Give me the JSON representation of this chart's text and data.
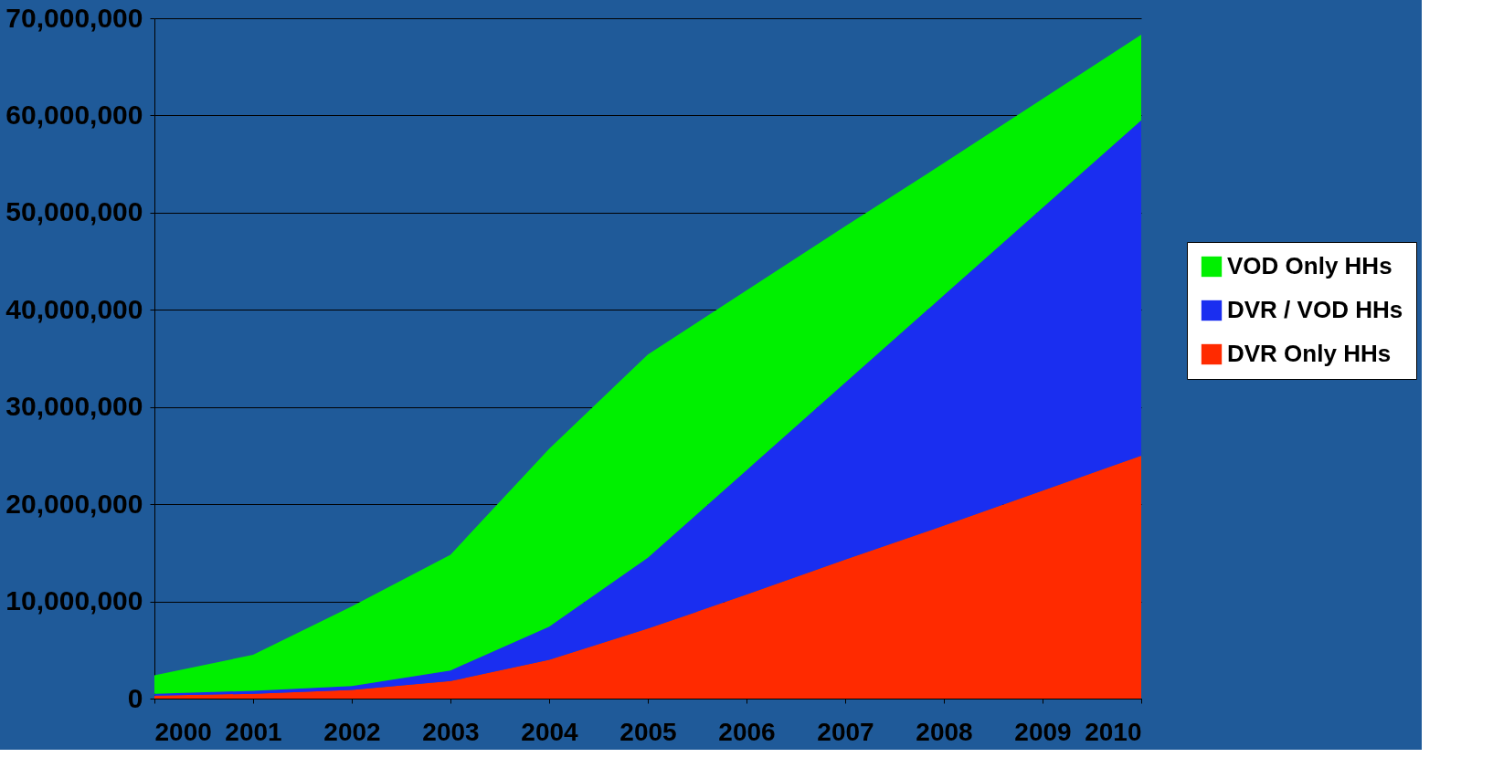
{
  "chart_data": {
    "type": "area",
    "stacked": true,
    "categories": [
      "2000",
      "2001",
      "2002",
      "2003",
      "2004",
      "2005",
      "2006",
      "2007",
      "2008",
      "2009",
      "2010"
    ],
    "series": [
      {
        "name": "DVR Only HHs",
        "color": "#ff2a00",
        "values": [
          300000,
          500000,
          900000,
          1800000,
          4000000,
          7200000,
          10700000,
          14300000,
          17800000,
          21400000,
          25000000
        ]
      },
      {
        "name": "DVR / VOD HHs",
        "color": "#1a2ef0",
        "values": [
          200000,
          300000,
          400000,
          1100000,
          3400000,
          7300000,
          12800000,
          18200000,
          23700000,
          29100000,
          34500000
        ]
      },
      {
        "name": "VOD Only HHs",
        "color": "#00f000",
        "values": [
          1900000,
          3700000,
          8200000,
          11900000,
          18300000,
          20900000,
          18500000,
          16100000,
          13600000,
          11200000,
          8800000
        ]
      }
    ],
    "ylim": [
      0,
      70000000
    ],
    "yticks": [
      0,
      {
        "value": 10000000,
        "label": "10,000,000"
      },
      {
        "value": 20000000,
        "label": "20,000,000"
      },
      {
        "value": 30000000,
        "label": "30,000,000"
      },
      {
        "value": 40000000,
        "label": "40,000,000"
      },
      {
        "value": 50000000,
        "label": "50,000,000"
      },
      {
        "value": 60000000,
        "label": "60,000,000"
      },
      {
        "value": 70000000,
        "label": "70,000,000"
      }
    ],
    "grid": "y",
    "legend": "right"
  }
}
